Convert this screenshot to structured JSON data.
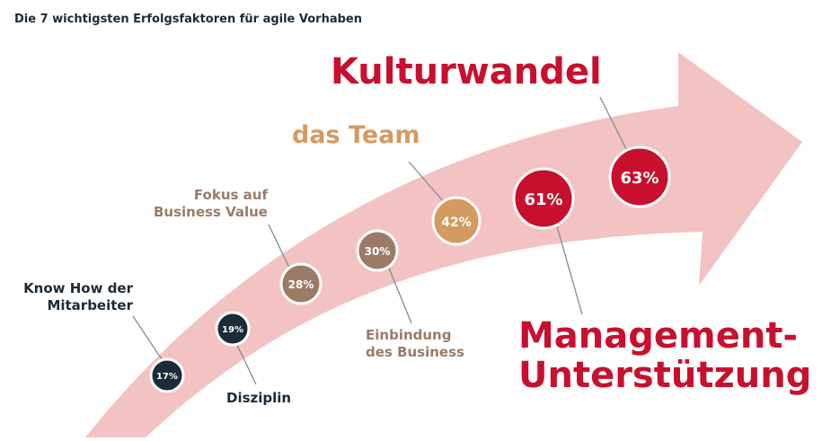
{
  "title": "Die 7 wichtigsten Erfolgsfaktoren für agile Vorhaben",
  "colors": {
    "arrow": "#f3c3c3",
    "dark": "#1c2b39",
    "brown": "#9c7b66",
    "gold": "#d49a62",
    "red": "#c8102e"
  },
  "factors": [
    {
      "label_line1": "Know How der",
      "label_line2": "Mitarbeiter",
      "value": "17%"
    },
    {
      "label_line1": "Disziplin",
      "label_line2": "",
      "value": "19%"
    },
    {
      "label_line1": "Fokus auf",
      "label_line2": "Business Value",
      "value": "28%"
    },
    {
      "label_line1": "Einbindung",
      "label_line2": "des Business",
      "value": "30%"
    },
    {
      "label_line1": "das Team",
      "label_line2": "",
      "value": "42%"
    },
    {
      "label_line1": "Management-",
      "label_line2": "Unterstützung",
      "value": "61%"
    },
    {
      "label_line1": "Kulturwandel",
      "label_line2": "",
      "value": "63%"
    }
  ]
}
